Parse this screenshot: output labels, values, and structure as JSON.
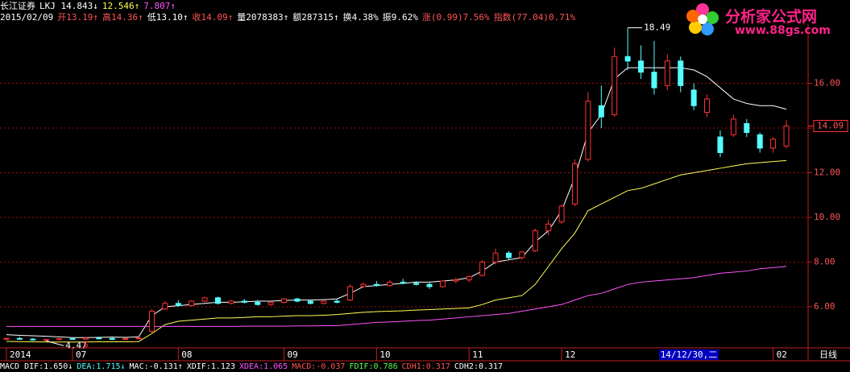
{
  "header": {
    "line1": [
      {
        "text": "长江证券",
        "color": "#ffffff"
      },
      {
        "text": "LKJ 14.843↓",
        "color": "#ffffff"
      },
      {
        "text": "12.546↑",
        "color": "#ffff54"
      },
      {
        "text": "7.807↑",
        "color": "#ff54ff"
      }
    ],
    "line2": [
      {
        "text": "2015/02/09",
        "color": "#ffffff"
      },
      {
        "text": "开13.19↑",
        "color": "#ff5454"
      },
      {
        "text": "高14.36↑",
        "color": "#ff5454"
      },
      {
        "text": "低13.10↑",
        "color": "#ffffff"
      },
      {
        "text": "收14.09↑",
        "color": "#ff5454"
      },
      {
        "text": "量2078383↑",
        "color": "#ffffff"
      },
      {
        "text": "额287315↑",
        "color": "#ffffff"
      },
      {
        "text": "换4.38%",
        "color": "#ffffff"
      },
      {
        "text": "振9.62%",
        "color": "#ffffff"
      },
      {
        "text": "涨(0.99)7.56%",
        "color": "#ff5454"
      },
      {
        "text": "指数(77.04)0.71%",
        "color": "#ff5454"
      }
    ]
  },
  "logo": {
    "title": "分析家公式网",
    "url": "www.88gs.com"
  },
  "footer": [
    {
      "text": "MACD DIF:1.650↓",
      "color": "#ffffff"
    },
    {
      "text": "DEA:1.715↓",
      "color": "#54ffff"
    },
    {
      "text": "MAC:-0.131↑",
      "color": "#ffffff"
    },
    {
      "text": "XDIF:1.123",
      "color": "#ffffff"
    },
    {
      "text": "XDEA:1.065",
      "color": "#ff54ff"
    },
    {
      "text": "MACD:-0.037",
      "color": "#ff5454"
    },
    {
      "text": "FDIF:0.786",
      "color": "#54ff54"
    },
    {
      "text": "CDH1:0.317",
      "color": "#ff5454"
    },
    {
      "text": "CDH2:0.317",
      "color": "#ffffff"
    }
  ],
  "chart_data": {
    "type": "candlestick",
    "up_color": "#ff3232",
    "down_color": "#54ffff",
    "grid": true,
    "grid_color": "#a01010",
    "ylim": [
      4.16,
      18.65
    ],
    "yticks": [
      {
        "value": 6,
        "label": "6.00"
      },
      {
        "value": 8,
        "label": "8.00"
      },
      {
        "value": 10,
        "label": "10.00"
      },
      {
        "value": 12,
        "label": "12.00"
      },
      {
        "value": 14,
        "label": "14.00"
      },
      {
        "value": 16,
        "label": "16.00"
      }
    ],
    "categories": [
      "2014",
      null,
      null,
      null,
      null,
      "07",
      null,
      null,
      null,
      null,
      null,
      null,
      null,
      "08",
      null,
      null,
      null,
      null,
      null,
      null,
      null,
      "09",
      null,
      null,
      null,
      null,
      null,
      null,
      "10",
      null,
      null,
      null,
      null,
      null,
      null,
      "11",
      null,
      null,
      null,
      null,
      null,
      null,
      "12",
      null,
      null,
      null,
      null,
      null,
      null,
      null,
      null,
      null,
      null,
      null,
      null,
      null,
      null,
      null,
      "02",
      null
    ],
    "cursor_label": "14/12/30,二",
    "period_label": "日线",
    "signal": "$",
    "ohlc": [
      [
        4.55,
        4.62,
        4.5,
        4.58
      ],
      [
        4.58,
        4.65,
        4.52,
        4.55
      ],
      [
        4.55,
        4.6,
        4.48,
        4.52
      ],
      [
        4.5,
        4.55,
        4.47,
        4.53
      ],
      [
        4.53,
        4.6,
        4.5,
        4.57
      ],
      [
        4.57,
        4.62,
        4.52,
        4.55
      ],
      [
        4.55,
        4.63,
        4.53,
        4.6
      ],
      [
        4.6,
        4.66,
        4.55,
        4.58
      ],
      [
        4.58,
        4.62,
        4.5,
        4.54
      ],
      [
        4.54,
        4.6,
        4.5,
        4.58
      ],
      [
        4.58,
        4.64,
        4.54,
        4.6
      ],
      [
        4.9,
        5.9,
        4.85,
        5.8
      ],
      [
        5.9,
        6.25,
        5.85,
        6.15
      ],
      [
        6.15,
        6.3,
        6.0,
        6.05
      ],
      [
        6.05,
        6.3,
        6.0,
        6.25
      ],
      [
        6.25,
        6.45,
        6.2,
        6.4
      ],
      [
        6.4,
        6.45,
        6.1,
        6.15
      ],
      [
        6.15,
        6.3,
        6.1,
        6.25
      ],
      [
        6.25,
        6.35,
        6.15,
        6.2
      ],
      [
        6.2,
        6.3,
        6.05,
        6.1
      ],
      [
        6.1,
        6.25,
        6.05,
        6.2
      ],
      [
        6.2,
        6.4,
        6.15,
        6.35
      ],
      [
        6.35,
        6.4,
        6.2,
        6.25
      ],
      [
        6.25,
        6.3,
        6.1,
        6.15
      ],
      [
        6.15,
        6.3,
        6.1,
        6.25
      ],
      [
        6.25,
        6.35,
        6.15,
        6.2
      ],
      [
        6.3,
        7.0,
        6.25,
        6.9
      ],
      [
        6.9,
        7.1,
        6.85,
        7.0
      ],
      [
        7.0,
        7.15,
        6.9,
        6.95
      ],
      [
        6.95,
        7.2,
        6.9,
        7.1
      ],
      [
        7.1,
        7.25,
        7.0,
        7.05
      ],
      [
        7.05,
        7.15,
        6.95,
        7.0
      ],
      [
        7.0,
        7.1,
        6.8,
        6.9
      ],
      [
        6.9,
        7.2,
        6.85,
        7.15
      ],
      [
        7.15,
        7.3,
        7.05,
        7.2
      ],
      [
        7.2,
        7.4,
        7.1,
        7.35
      ],
      [
        7.4,
        8.1,
        7.35,
        8.0
      ],
      [
        8.0,
        8.6,
        7.9,
        8.4
      ],
      [
        8.4,
        8.5,
        8.1,
        8.2
      ],
      [
        8.2,
        8.5,
        8.1,
        8.45
      ],
      [
        8.5,
        9.5,
        8.45,
        9.4
      ],
      [
        9.4,
        9.9,
        9.2,
        9.7
      ],
      [
        9.8,
        10.6,
        9.7,
        10.5
      ],
      [
        10.6,
        12.6,
        10.5,
        12.4
      ],
      [
        12.6,
        15.6,
        12.5,
        15.2
      ],
      [
        15.0,
        15.9,
        14.0,
        14.5
      ],
      [
        14.6,
        17.6,
        14.5,
        17.2
      ],
      [
        17.2,
        18.49,
        16.6,
        17.0
      ],
      [
        17.0,
        17.7,
        16.2,
        16.5
      ],
      [
        16.5,
        17.9,
        15.5,
        15.8
      ],
      [
        15.9,
        17.3,
        15.7,
        17.0
      ],
      [
        17.0,
        17.2,
        15.6,
        15.9
      ],
      [
        15.7,
        16.0,
        14.8,
        15.0
      ],
      [
        14.7,
        15.5,
        14.5,
        15.3
      ],
      [
        13.6,
        13.9,
        12.7,
        12.9
      ],
      [
        13.7,
        14.6,
        13.6,
        14.4
      ],
      [
        14.2,
        14.4,
        13.6,
        13.8
      ],
      [
        13.7,
        13.8,
        12.9,
        13.1
      ],
      [
        13.1,
        13.6,
        12.9,
        13.5
      ],
      [
        13.19,
        14.36,
        13.1,
        14.09
      ]
    ],
    "series": [
      {
        "color": "#ffffff",
        "values": [
          4.75,
          4.72,
          4.7,
          4.68,
          4.65,
          4.62,
          4.62,
          4.63,
          4.64,
          4.63,
          4.65,
          5.6,
          6.0,
          6.05,
          6.1,
          6.15,
          6.2,
          6.2,
          6.22,
          6.25,
          6.25,
          6.28,
          6.3,
          6.3,
          6.32,
          6.35,
          6.6,
          6.9,
          6.95,
          7.0,
          7.05,
          7.1,
          7.1,
          7.15,
          7.2,
          7.3,
          7.6,
          8.0,
          8.1,
          8.2,
          8.9,
          9.4,
          10.3,
          11.8,
          13.8,
          14.6,
          16.2,
          16.7,
          16.7,
          16.7,
          16.7,
          16.7,
          16.6,
          16.3,
          15.8,
          15.3,
          15.1,
          15.0,
          15.0,
          14.843
        ]
      },
      {
        "color": "#ffff54",
        "values": [
          4.45,
          4.44,
          4.43,
          4.42,
          4.42,
          4.42,
          4.42,
          4.43,
          4.43,
          4.43,
          4.44,
          4.8,
          5.2,
          5.35,
          5.4,
          5.45,
          5.5,
          5.5,
          5.52,
          5.55,
          5.55,
          5.58,
          5.6,
          5.6,
          5.62,
          5.65,
          5.7,
          5.75,
          5.78,
          5.8,
          5.82,
          5.85,
          5.87,
          5.9,
          5.92,
          5.95,
          6.1,
          6.3,
          6.4,
          6.5,
          7.0,
          7.8,
          8.6,
          9.3,
          10.3,
          10.6,
          10.9,
          11.2,
          11.3,
          11.5,
          11.7,
          11.9,
          12.0,
          12.1,
          12.2,
          12.3,
          12.4,
          12.45,
          12.5,
          12.546
        ]
      },
      {
        "color": "#ff54ff",
        "values": [
          5.12,
          5.12,
          5.12,
          5.12,
          5.12,
          5.12,
          5.12,
          5.12,
          5.12,
          5.12,
          5.12,
          5.12,
          5.12,
          5.12,
          5.12,
          5.12,
          5.12,
          5.12,
          5.13,
          5.13,
          5.13,
          5.13,
          5.14,
          5.14,
          5.15,
          5.15,
          5.2,
          5.25,
          5.3,
          5.32,
          5.35,
          5.38,
          5.4,
          5.45,
          5.5,
          5.55,
          5.6,
          5.65,
          5.7,
          5.8,
          5.9,
          6.0,
          6.1,
          6.3,
          6.5,
          6.6,
          6.8,
          7.0,
          7.1,
          7.15,
          7.2,
          7.25,
          7.3,
          7.4,
          7.5,
          7.55,
          7.6,
          7.7,
          7.75,
          7.807
        ]
      }
    ]
  }
}
